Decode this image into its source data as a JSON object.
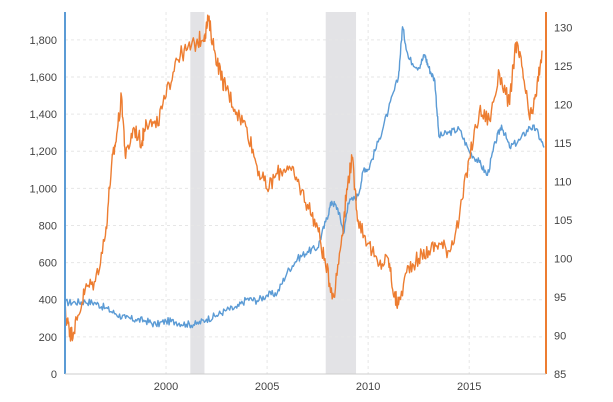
{
  "chart_data": {
    "type": "line",
    "x_axis": {
      "range": [
        1995.0,
        2018.8
      ],
      "ticks": [
        2000,
        2005,
        2010,
        2015
      ],
      "tick_labels": [
        "2000",
        "2005",
        "2010",
        "2015"
      ]
    },
    "y_axis_left": {
      "range": [
        0,
        1950
      ],
      "ticks": [
        0,
        200,
        400,
        600,
        800,
        1000,
        1200,
        1400,
        1600,
        1800
      ],
      "tick_labels": [
        "0",
        "200",
        "400",
        "600",
        "800",
        "1,000",
        "1,200",
        "1,400",
        "1,600",
        "1,800"
      ],
      "color": "#5b9bd5"
    },
    "y_axis_right": {
      "range": [
        85,
        132
      ],
      "ticks": [
        85,
        90,
        95,
        100,
        105,
        110,
        115,
        120,
        125,
        130
      ],
      "tick_labels": [
        "85",
        "90",
        "95",
        "100",
        "105",
        "110",
        "115",
        "120",
        "125",
        "130"
      ],
      "color": "#ed7d31"
    },
    "grid": true,
    "shaded_periods": [
      [
        2001.2,
        2001.9
      ],
      [
        2007.9,
        2009.4
      ]
    ],
    "shade_color": "#e3e3e6",
    "series": [
      {
        "axis": "left",
        "color": "#5b9bd5",
        "points": [
          [
            1995.0,
            385
          ],
          [
            1995.5,
            386
          ],
          [
            1996.0,
            390
          ],
          [
            1996.5,
            383
          ],
          [
            1997.0,
            355
          ],
          [
            1997.5,
            325
          ],
          [
            1998.0,
            300
          ],
          [
            1998.5,
            293
          ],
          [
            1999.0,
            287
          ],
          [
            1999.5,
            265
          ],
          [
            2000.0,
            285
          ],
          [
            2000.5,
            280
          ],
          [
            2001.0,
            268
          ],
          [
            2001.5,
            268
          ],
          [
            2002.0,
            295
          ],
          [
            2002.5,
            315
          ],
          [
            2003.0,
            345
          ],
          [
            2003.5,
            355
          ],
          [
            2004.0,
            405
          ],
          [
            2004.5,
            395
          ],
          [
            2005.0,
            425
          ],
          [
            2005.5,
            435
          ],
          [
            2006.0,
            550
          ],
          [
            2006.5,
            620
          ],
          [
            2007.0,
            660
          ],
          [
            2007.5,
            680
          ],
          [
            2007.9,
            820
          ],
          [
            2008.2,
            930
          ],
          [
            2008.5,
            890
          ],
          [
            2008.8,
            760
          ],
          [
            2009.0,
            920
          ],
          [
            2009.5,
            960
          ],
          [
            2009.8,
            1110
          ],
          [
            2010.0,
            1100
          ],
          [
            2010.5,
            1250
          ],
          [
            2011.0,
            1420
          ],
          [
            2011.5,
            1600
          ],
          [
            2011.7,
            1870
          ],
          [
            2012.0,
            1700
          ],
          [
            2012.5,
            1650
          ],
          [
            2012.8,
            1720
          ],
          [
            2013.0,
            1650
          ],
          [
            2013.3,
            1580
          ],
          [
            2013.5,
            1280
          ],
          [
            2014.0,
            1300
          ],
          [
            2014.5,
            1320
          ],
          [
            2015.0,
            1200
          ],
          [
            2015.5,
            1140
          ],
          [
            2015.9,
            1070
          ],
          [
            2016.3,
            1250
          ],
          [
            2016.6,
            1340
          ],
          [
            2017.0,
            1220
          ],
          [
            2017.5,
            1260
          ],
          [
            2018.0,
            1330
          ],
          [
            2018.3,
            1320
          ],
          [
            2018.7,
            1220
          ]
        ]
      },
      {
        "axis": "right",
        "color": "#ed7d31",
        "points": [
          [
            1995.0,
            93
          ],
          [
            1995.2,
            91
          ],
          [
            1995.3,
            90
          ],
          [
            1995.6,
            92
          ],
          [
            1996.0,
            96
          ],
          [
            1996.5,
            97
          ],
          [
            1997.0,
            103
          ],
          [
            1997.3,
            112
          ],
          [
            1997.5,
            115
          ],
          [
            1997.8,
            121
          ],
          [
            1998.0,
            113
          ],
          [
            1998.4,
            117
          ],
          [
            1998.8,
            115
          ],
          [
            1999.0,
            118
          ],
          [
            1999.5,
            117
          ],
          [
            2000.0,
            121
          ],
          [
            2000.5,
            126
          ],
          [
            2001.0,
            127
          ],
          [
            2001.5,
            128
          ],
          [
            2001.9,
            129
          ],
          [
            2002.1,
            131
          ],
          [
            2002.4,
            127
          ],
          [
            2002.8,
            123
          ],
          [
            2003.0,
            122
          ],
          [
            2003.5,
            119
          ],
          [
            2004.0,
            117
          ],
          [
            2004.5,
            112
          ],
          [
            2005.0,
            109
          ],
          [
            2005.5,
            111
          ],
          [
            2006.0,
            112
          ],
          [
            2006.5,
            110
          ],
          [
            2007.0,
            107
          ],
          [
            2007.5,
            104
          ],
          [
            2007.9,
            99
          ],
          [
            2008.3,
            95
          ],
          [
            2008.7,
            103
          ],
          [
            2009.0,
            110
          ],
          [
            2009.2,
            113
          ],
          [
            2009.5,
            105
          ],
          [
            2010.0,
            102
          ],
          [
            2010.5,
            99
          ],
          [
            2011.0,
            100
          ],
          [
            2011.3,
            95
          ],
          [
            2011.5,
            94
          ],
          [
            2012.0,
            99
          ],
          [
            2012.5,
            100
          ],
          [
            2013.0,
            101
          ],
          [
            2013.5,
            102
          ],
          [
            2014.0,
            101
          ],
          [
            2014.5,
            105
          ],
          [
            2015.0,
            113
          ],
          [
            2015.5,
            119
          ],
          [
            2016.0,
            118
          ],
          [
            2016.5,
            124
          ],
          [
            2017.0,
            120
          ],
          [
            2017.3,
            128
          ],
          [
            2017.6,
            125
          ],
          [
            2018.0,
            118
          ],
          [
            2018.3,
            121
          ],
          [
            2018.6,
            127
          ]
        ]
      }
    ]
  }
}
